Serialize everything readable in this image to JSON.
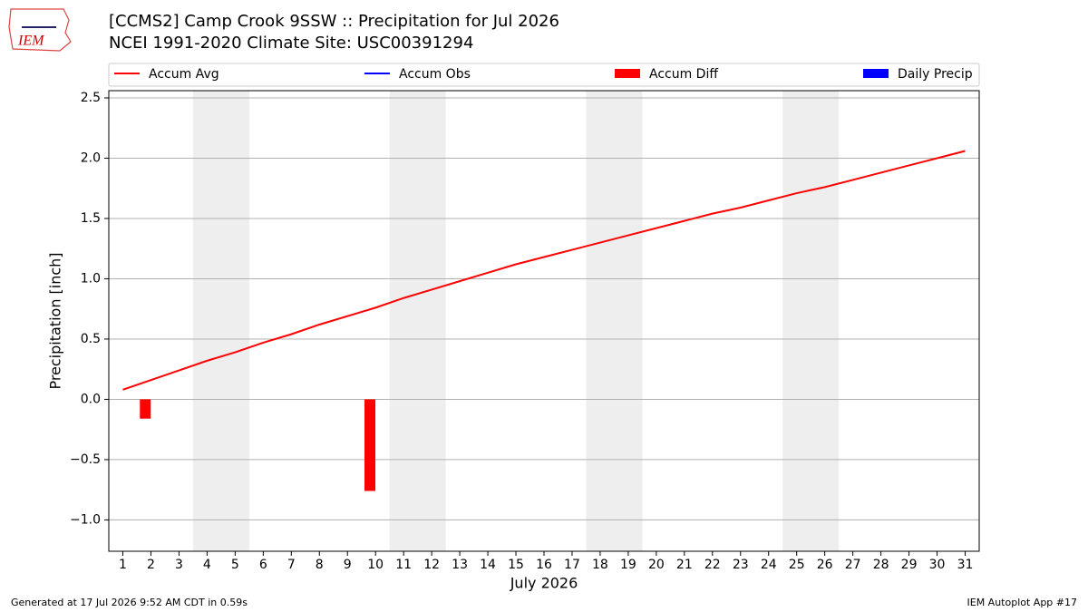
{
  "logo": "IEM",
  "footer": {
    "left": "Generated at 17 Jul 2026 9:52 AM CDT in 0.59s",
    "right": "IEM Autoplot App #17"
  },
  "chart_data": {
    "type": "combo",
    "title": "[CCMS2] Camp Crook 9SSW :: Precipitation for Jul 2026",
    "subtitle": "NCEI 1991-2020 Climate Site: USC00391294",
    "xlabel": "July 2026",
    "ylabel": "Precipitation [inch]",
    "x": [
      1,
      2,
      3,
      4,
      5,
      6,
      7,
      8,
      9,
      10,
      11,
      12,
      13,
      14,
      15,
      16,
      17,
      18,
      19,
      20,
      21,
      22,
      23,
      24,
      25,
      26,
      27,
      28,
      29,
      30,
      31
    ],
    "xlim": [
      0.5,
      31.5
    ],
    "xticks": [
      1,
      2,
      3,
      4,
      5,
      6,
      7,
      8,
      9,
      10,
      11,
      12,
      13,
      14,
      15,
      16,
      17,
      18,
      19,
      20,
      21,
      22,
      23,
      24,
      25,
      26,
      27,
      28,
      29,
      30,
      31
    ],
    "ylim": [
      -1.26,
      2.56
    ],
    "yticks": [
      {
        "value": -1.0,
        "label": "−1.0"
      },
      {
        "value": -0.5,
        "label": "−0.5"
      },
      {
        "value": 0,
        "label": "0.0"
      },
      0.5,
      {
        "value": 1.0,
        "label": "1.0"
      },
      1.5,
      {
        "value": 2.0,
        "label": "2.0"
      },
      2.5
    ],
    "grid": true,
    "highlight_spans": [
      [
        3.5,
        5.5
      ],
      [
        10.5,
        12.5
      ],
      [
        17.5,
        19.5
      ],
      [
        24.5,
        26.5
      ]
    ],
    "highlight_color": "#eeeeee",
    "series": [
      {
        "name": "Accum Avg",
        "color": "#ff0000",
        "kind": "line",
        "values": [
          0.08,
          0.16,
          0.24,
          0.32,
          0.39,
          0.47,
          0.54,
          0.62,
          0.69,
          0.76,
          0.84,
          0.91,
          0.98,
          1.05,
          1.12,
          1.18,
          1.24,
          1.3,
          1.36,
          1.42,
          1.48,
          1.54,
          1.59,
          1.65,
          1.71,
          1.76,
          1.82,
          1.88,
          1.94,
          2.0,
          2.06
        ]
      },
      {
        "name": "Accum Obs",
        "color": "#0000ff",
        "kind": "line"
      },
      {
        "name": "Accum Diff",
        "color": "#ff0000",
        "kind": "bar",
        "x": [
          1.8,
          9.8
        ],
        "values": [
          -0.16,
          -0.76
        ]
      },
      {
        "name": "Daily Precip",
        "color": "#0000ff",
        "kind": "bar"
      }
    ]
  }
}
